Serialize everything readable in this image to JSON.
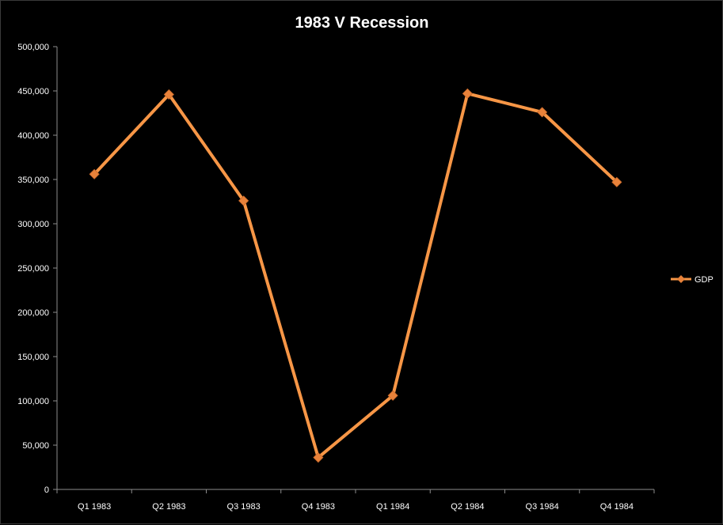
{
  "chart_data": {
    "type": "line",
    "title": "1983 V Recession",
    "xlabel": "",
    "ylabel": "",
    "categories": [
      "Q1 1983",
      "Q2 1983",
      "Q3 1983",
      "Q4 1983",
      "Q1 1984",
      "Q2 1984",
      "Q3 1984",
      "Q4 1984"
    ],
    "series": [
      {
        "name": "GDP",
        "values": [
          356000,
          446000,
          326000,
          36000,
          106000,
          447000,
          426000,
          347000
        ]
      }
    ],
    "ylim": [
      0,
      500000
    ],
    "yticks": [
      "0",
      "50,000",
      "100,000",
      "150,000",
      "200,000",
      "250,000",
      "300,000",
      "350,000",
      "400,000",
      "450,000",
      "500,000"
    ],
    "ytick_values": [
      0,
      50000,
      100000,
      150000,
      200000,
      250000,
      300000,
      350000,
      400000,
      450000,
      500000
    ],
    "grid": false,
    "legend_position": "right",
    "colors": {
      "background": "#000000",
      "line": "#F79646",
      "marker": "#E8823A",
      "text": "#ffffff",
      "axis": "#8c8c8c"
    }
  }
}
